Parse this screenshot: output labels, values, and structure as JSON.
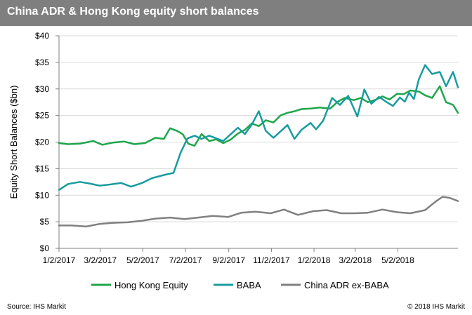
{
  "header": {
    "title": "China ADR & Hong Kong equity short balances"
  },
  "footer": {
    "source": "Source: IHS Markit",
    "copyright": "© 2018 IHS Markit"
  },
  "chart_data": {
    "type": "line",
    "title": "China ADR & Hong Kong equity short balances",
    "ylabel": "Equity Short Balances ($bn)",
    "xlabel": "",
    "ylim": [
      0,
      40
    ],
    "yticks": [
      0,
      5,
      10,
      15,
      20,
      25,
      30,
      35,
      40
    ],
    "ytick_labels": [
      "$0",
      "$5",
      "$10",
      "$15",
      "$20",
      "$25",
      "$30",
      "$35",
      "$40"
    ],
    "xlim": [
      "2017-01-02",
      "2018-07-27"
    ],
    "xtick_labels": [
      "1/2/2017",
      "3/2/2017",
      "5/2/2017",
      "7/2/2017",
      "9/2/2017",
      "11/2/2017",
      "1/2/2018",
      "3/2/2018",
      "5/2/2018"
    ],
    "xticks": [
      "2017-01-02",
      "2017-03-02",
      "2017-05-02",
      "2017-07-02",
      "2017-09-02",
      "2017-11-02",
      "2018-01-02",
      "2018-03-02",
      "2018-05-02"
    ],
    "grid": "horizontal",
    "legend_position": "bottom",
    "series": [
      {
        "name": "Hong Kong Equity",
        "color": "#1fa64a",
        "x": [
          "2017-01-02",
          "2017-01-15",
          "2017-02-01",
          "2017-02-20",
          "2017-03-05",
          "2017-03-20",
          "2017-04-05",
          "2017-04-20",
          "2017-05-05",
          "2017-05-20",
          "2017-06-01",
          "2017-06-10",
          "2017-06-20",
          "2017-06-28",
          "2017-07-06",
          "2017-07-15",
          "2017-07-25",
          "2017-08-05",
          "2017-08-15",
          "2017-08-25",
          "2017-09-05",
          "2017-09-15",
          "2017-09-25",
          "2017-10-05",
          "2017-10-15",
          "2017-10-25",
          "2017-11-05",
          "2017-11-15",
          "2017-11-25",
          "2017-12-05",
          "2017-12-15",
          "2017-12-28",
          "2018-01-10",
          "2018-01-25",
          "2018-02-05",
          "2018-02-15",
          "2018-02-28",
          "2018-03-10",
          "2018-03-20",
          "2018-04-01",
          "2018-04-10",
          "2018-04-20",
          "2018-05-01",
          "2018-05-10",
          "2018-05-20",
          "2018-06-01",
          "2018-06-10",
          "2018-06-20",
          "2018-07-01",
          "2018-07-10",
          "2018-07-20",
          "2018-07-27"
        ],
        "values": [
          19.8,
          19.6,
          19.7,
          20.2,
          19.5,
          19.9,
          20.1,
          19.6,
          19.8,
          20.8,
          20.6,
          22.6,
          22.1,
          21.5,
          19.7,
          19.3,
          21.5,
          20.2,
          20.5,
          19.8,
          20.5,
          21.6,
          22.3,
          23.5,
          23.0,
          24.1,
          23.7,
          25.0,
          25.5,
          25.8,
          26.2,
          26.3,
          26.5,
          26.3,
          27.6,
          28.3,
          27.9,
          28.3,
          27.5,
          28.0,
          28.6,
          28.0,
          29.1,
          29.0,
          29.7,
          29.5,
          28.8,
          28.3,
          30.5,
          27.5,
          27.0,
          25.5
        ]
      },
      {
        "name": "BABA",
        "color": "#179c9f",
        "x": [
          "2017-01-02",
          "2017-01-15",
          "2017-02-01",
          "2017-02-15",
          "2017-03-01",
          "2017-03-15",
          "2017-04-01",
          "2017-04-15",
          "2017-05-01",
          "2017-05-15",
          "2017-06-01",
          "2017-06-15",
          "2017-06-25",
          "2017-07-05",
          "2017-07-15",
          "2017-07-25",
          "2017-08-05",
          "2017-08-15",
          "2017-08-25",
          "2017-09-05",
          "2017-09-15",
          "2017-09-25",
          "2017-10-05",
          "2017-10-15",
          "2017-10-25",
          "2017-11-05",
          "2017-11-15",
          "2017-11-25",
          "2017-12-05",
          "2017-12-15",
          "2017-12-28",
          "2018-01-05",
          "2018-01-15",
          "2018-01-28",
          "2018-02-08",
          "2018-02-20",
          "2018-03-05",
          "2018-03-15",
          "2018-03-25",
          "2018-04-05",
          "2018-04-15",
          "2018-04-25",
          "2018-05-05",
          "2018-05-12",
          "2018-05-18",
          "2018-05-25",
          "2018-06-01",
          "2018-06-10",
          "2018-06-20",
          "2018-07-01",
          "2018-07-10",
          "2018-07-20",
          "2018-07-27"
        ],
        "values": [
          11.0,
          12.1,
          12.5,
          12.2,
          11.8,
          12.0,
          12.3,
          11.6,
          12.3,
          13.2,
          13.8,
          14.2,
          18.0,
          20.7,
          21.2,
          20.6,
          21.2,
          20.7,
          20.2,
          21.5,
          22.7,
          21.5,
          23.3,
          25.8,
          22.1,
          20.8,
          22.0,
          23.2,
          20.6,
          22.3,
          23.6,
          22.4,
          24.0,
          28.3,
          27.0,
          28.7,
          24.8,
          29.9,
          27.2,
          28.5,
          27.6,
          26.8,
          28.4,
          27.6,
          29.3,
          28.1,
          31.8,
          34.5,
          32.8,
          33.2,
          30.5,
          33.2,
          30.3
        ]
      },
      {
        "name": "China ADR ex-BABA",
        "color": "#808080",
        "x": [
          "2017-01-02",
          "2017-01-20",
          "2017-02-10",
          "2017-03-01",
          "2017-03-20",
          "2017-04-10",
          "2017-05-01",
          "2017-05-20",
          "2017-06-10",
          "2017-07-01",
          "2017-07-20",
          "2017-08-10",
          "2017-09-01",
          "2017-09-20",
          "2017-10-10",
          "2017-11-01",
          "2017-11-20",
          "2017-12-10",
          "2018-01-01",
          "2018-01-20",
          "2018-02-10",
          "2018-03-01",
          "2018-03-20",
          "2018-04-10",
          "2018-05-01",
          "2018-05-20",
          "2018-06-10",
          "2018-06-25",
          "2018-07-05",
          "2018-07-15",
          "2018-07-27"
        ],
        "values": [
          4.3,
          4.3,
          4.1,
          4.6,
          4.8,
          4.9,
          5.2,
          5.6,
          5.8,
          5.5,
          5.8,
          6.1,
          5.9,
          6.7,
          6.9,
          6.6,
          7.3,
          6.3,
          7.0,
          7.2,
          6.6,
          6.6,
          6.7,
          7.3,
          6.8,
          6.6,
          7.2,
          8.8,
          9.7,
          9.5,
          8.9
        ]
      }
    ]
  }
}
